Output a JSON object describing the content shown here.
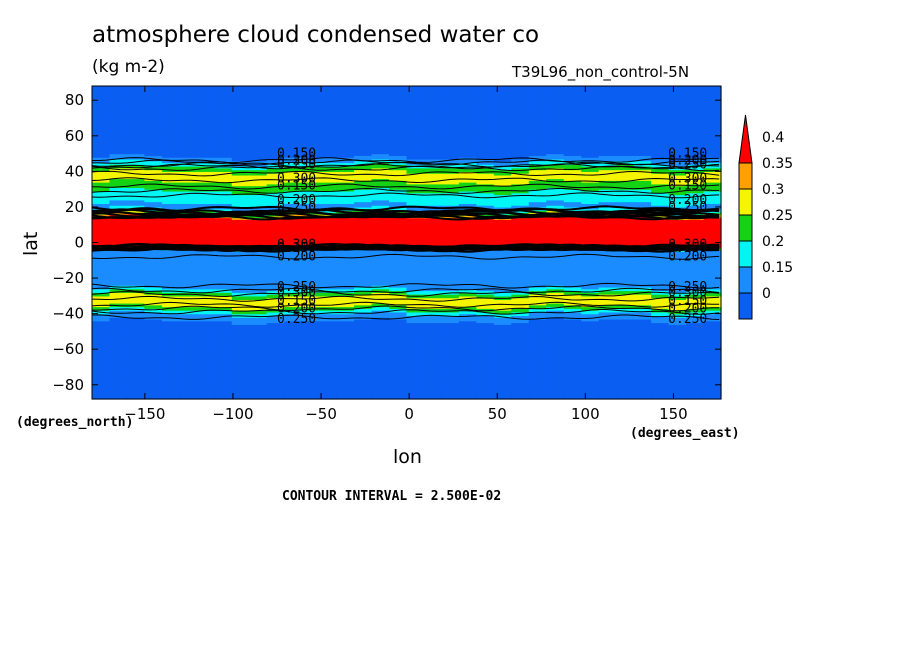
{
  "chart_data": {
    "type": "heatmap",
    "title": "atmosphere cloud condensed water co",
    "units": "(kg m-2)",
    "run_label": "T39L96_non_control-5N",
    "xlabel": "lon",
    "ylabel": "lat",
    "x_units": "(degrees_east)",
    "y_units": "(degrees_north)",
    "xlim": [
      -180,
      177
    ],
    "ylim": [
      -88,
      88
    ],
    "x_ticks": [
      -150,
      -100,
      -50,
      0,
      50,
      100,
      150
    ],
    "y_ticks": [
      80,
      60,
      40,
      20,
      0,
      -20,
      -40,
      -60,
      -80
    ],
    "contour_interval_text": "CONTOUR INTERVAL = 2.500E-02",
    "colorbar": {
      "levels": [
        0,
        0.15,
        0.2,
        0.25,
        0.3,
        0.35,
        0.4
      ],
      "labels": [
        "0.4",
        "0.35",
        "0.3",
        "0.25",
        "0.2",
        "0.15",
        "0"
      ],
      "colors": [
        "#0a5ef2",
        "#1a8cff",
        "#00f5f5",
        "#14d214",
        "#f5f500",
        "#ffa000",
        "#ff0000"
      ],
      "extend": "max"
    },
    "zonal_profile": {
      "lat": [
        -88,
        -46,
        -44,
        -40,
        -38,
        -36,
        -34,
        -32,
        -30,
        -28,
        -26,
        -24,
        -22,
        -12,
        -4,
        -2,
        14,
        16,
        18,
        20,
        22,
        26,
        30,
        34,
        36,
        38,
        40,
        42,
        44,
        46,
        48,
        52,
        88
      ],
      "value": [
        0.1,
        0.1,
        0.15,
        0.2,
        0.25,
        0.3,
        0.35,
        0.33,
        0.3,
        0.25,
        0.2,
        0.17,
        0.15,
        0.15,
        0.2,
        0.45,
        0.45,
        0.3,
        0.22,
        0.18,
        0.2,
        0.22,
        0.26,
        0.3,
        0.35,
        0.34,
        0.3,
        0.27,
        0.22,
        0.18,
        0.15,
        0.1,
        0.1
      ]
    },
    "contour_labels": [
      "0.150",
      "0.200",
      "0.250",
      "0.300"
    ]
  }
}
